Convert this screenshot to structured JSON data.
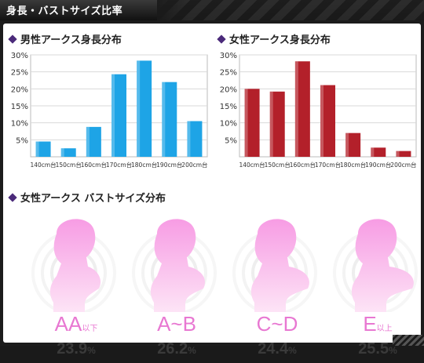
{
  "header": {
    "title": "身長・バストサイズ比率"
  },
  "chart_data": [
    {
      "type": "bar",
      "title": "男性アークス身長分布",
      "categories": [
        "140cm台",
        "150cm台",
        "160cm台",
        "170cm台",
        "180cm台",
        "190cm台",
        "200cm台"
      ],
      "values": [
        4.5,
        2.5,
        8.8,
        24.3,
        28.3,
        22.0,
        10.5
      ],
      "ylim": [
        0,
        30
      ],
      "yticks": [
        "5%",
        "10%",
        "15%",
        "20%",
        "25%",
        "30%"
      ],
      "grid": true,
      "color": "#1ea4e6"
    },
    {
      "type": "bar",
      "title": "女性アークス身長分布",
      "categories": [
        "140cm台",
        "150cm台",
        "160cm台",
        "170cm台",
        "180cm台",
        "190cm台",
        "200cm台"
      ],
      "values": [
        20.0,
        19.2,
        28.1,
        21.1,
        7.0,
        2.7,
        1.7
      ],
      "ylim": [
        0,
        30
      ],
      "yticks": [
        "5%",
        "10%",
        "15%",
        "20%",
        "25%",
        "30%"
      ],
      "grid": true,
      "color": "#b3202a"
    }
  ],
  "bust_section": {
    "title": "女性アークス バストサイズ分布",
    "items": [
      {
        "label": "AA",
        "suffix": "以下",
        "value": "23.9",
        "unit": "%"
      },
      {
        "label": "A~B",
        "suffix": "",
        "value": "26.2",
        "unit": "%"
      },
      {
        "label": "C~D",
        "suffix": "",
        "value": "24.4",
        "unit": "%"
      },
      {
        "label": "E",
        "suffix": "以上",
        "value": "25.5",
        "unit": "%"
      }
    ]
  }
}
